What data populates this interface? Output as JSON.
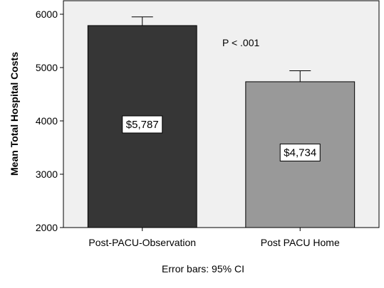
{
  "chart_data": {
    "type": "bar",
    "categories": [
      "Post-PACU-Observation",
      "Post PACU Home"
    ],
    "values": [
      5787,
      4734
    ],
    "error_upper": [
      5950,
      4940
    ],
    "data_labels": [
      "$5,787",
      "$4,734"
    ],
    "bar_colors": [
      "#363636",
      "#999999"
    ],
    "ylabel": "Mean Total Hospital Costs",
    "xlabel": "",
    "ylim": [
      2000,
      6000
    ],
    "yticks": [
      2000,
      3000,
      4000,
      5000,
      6000
    ],
    "annotation": "P < .001",
    "footnote": "Error bars: 95% CI",
    "plot_background": "#f0f0f0",
    "grid": false
  }
}
